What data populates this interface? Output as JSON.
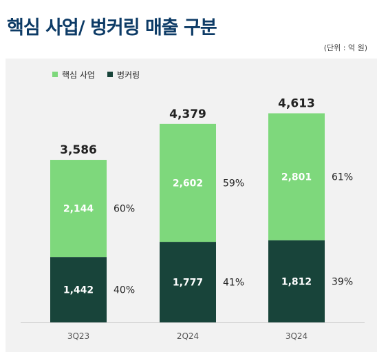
{
  "title": "핵심 사업/ 벙커링 매출 구분",
  "unit": "(단위 : 억 원)",
  "colors": {
    "core": "#7ed87c",
    "bunkering": "#18443a"
  },
  "chart_data": {
    "type": "bar",
    "stacked": true,
    "categories": [
      "3Q23",
      "2Q24",
      "3Q24"
    ],
    "series": [
      {
        "name": "핵심 사업",
        "values": [
          2144,
          2602,
          2801
        ],
        "labels": [
          "2,144",
          "2,602",
          "2,801"
        ],
        "percents": [
          "60%",
          "59%",
          "61%"
        ]
      },
      {
        "name": "벙커링",
        "values": [
          1442,
          1777,
          1812
        ],
        "labels": [
          "1,442",
          "1,777",
          "1,812"
        ],
        "percents": [
          "40%",
          "41%",
          "39%"
        ]
      }
    ],
    "totals": [
      "3,586",
      "4,379",
      "4,613"
    ],
    "legend": "top-left",
    "grid": false
  }
}
